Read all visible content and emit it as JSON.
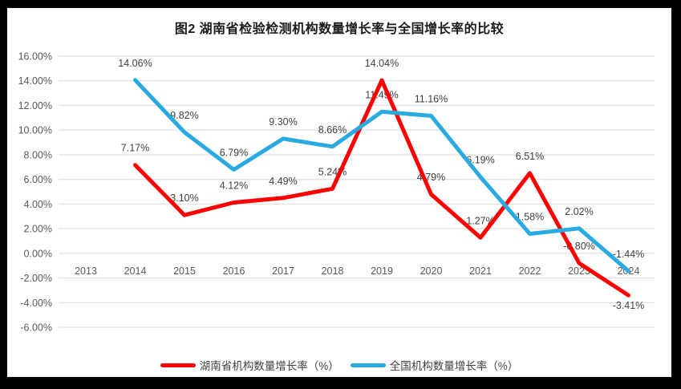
{
  "window": {
    "frame_background": "#000000",
    "canvas_background": "#ffffff"
  },
  "styles": {
    "gridline_color": "#e2e2e2",
    "axis_text_color": "#595959",
    "data_label_color": "#404040",
    "title_color": "#1a1a1a"
  },
  "chart_data": {
    "type": "line",
    "title": "图2 湖南省检验检测机构数量增长率与全国增长率的比较",
    "xlabel": "",
    "ylabel": "",
    "categories": [
      "2013",
      "2014",
      "2015",
      "2016",
      "2017",
      "2018",
      "2019",
      "2020",
      "2021",
      "2022",
      "2023",
      "2024"
    ],
    "ylim": [
      -6,
      16
    ],
    "y_step": 2,
    "y_ticks": [
      "16.00%",
      "14.00%",
      "12.00%",
      "10.00%",
      "8.00%",
      "6.00%",
      "4.00%",
      "2.00%",
      "0.00%",
      "-2.00%",
      "-4.00%",
      "-6.00%"
    ],
    "grid": true,
    "legend_position": "bottom",
    "series": [
      {
        "name": "湖南省机构数量增长率（%）",
        "color": "#ff0000",
        "values": [
          null,
          7.17,
          3.1,
          4.12,
          4.49,
          5.24,
          14.04,
          4.79,
          1.27,
          6.51,
          -0.8,
          -3.41
        ],
        "labels": [
          null,
          "7.17%",
          "3.10%",
          "4.12%",
          "4.49%",
          "5.24%",
          "14.04%",
          "4.79%",
          "1.27%",
          "6.51%",
          "-0.80%",
          "-3.41%"
        ]
      },
      {
        "name": "全国机构数量增长率（%）",
        "color": "#29abe2",
        "values": [
          null,
          14.06,
          9.82,
          6.79,
          9.3,
          8.66,
          11.49,
          11.16,
          6.19,
          1.58,
          2.02,
          -1.44
        ],
        "labels": [
          null,
          "14.06%",
          "9.82%",
          "6.79%",
          "9.30%",
          "8.66%",
          "11.49%",
          "11.16%",
          "6.19%",
          "1.58%",
          "2.02%",
          "-1.44%"
        ]
      }
    ]
  }
}
